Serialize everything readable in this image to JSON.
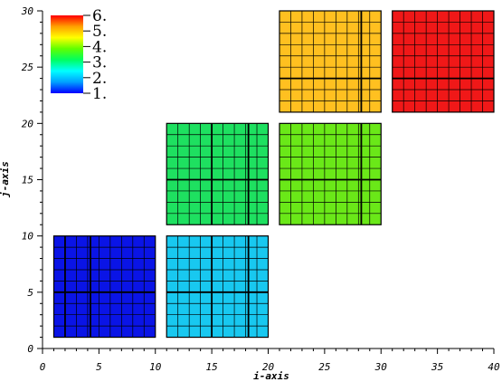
{
  "chart_data": {
    "type": "heatmap",
    "xlabel": "i-axis",
    "ylabel": "j-axis",
    "xlim": [
      0,
      40
    ],
    "ylim": [
      0,
      30
    ],
    "x_ticks": [
      "0",
      "5",
      "10",
      "15",
      "20",
      "25",
      "30",
      "35",
      "40"
    ],
    "y_ticks": [
      "0",
      "5",
      "10",
      "15",
      "20",
      "25",
      "30"
    ],
    "grid": false,
    "legend": {
      "placement": "top-left",
      "labels": [
        "1.",
        "2.",
        "3.",
        "4.",
        "5.",
        "6."
      ],
      "range": [
        1,
        6
      ],
      "colormap": [
        "#0000ff",
        "#00a0ff",
        "#00ffff",
        "#00ff60",
        "#60ff00",
        "#ffff00",
        "#ffa000",
        "#ff0000"
      ]
    },
    "blocks": [
      {
        "value": 1,
        "i": [
          1,
          10
        ],
        "j": [
          1,
          10
        ],
        "color": "#0a14e6",
        "cells": 9,
        "thick_lines_i": [
          2,
          4.25
        ],
        "thick_lines_j": [
          5
        ]
      },
      {
        "value": 2,
        "i": [
          11,
          20
        ],
        "j": [
          1,
          10
        ],
        "color": "#18c8f0",
        "cells": 9,
        "thick_lines_i": [
          15,
          18.25
        ],
        "thick_lines_j": [
          5
        ]
      },
      {
        "value": 3,
        "i": [
          11,
          20
        ],
        "j": [
          11,
          20
        ],
        "color": "#1ee060",
        "cells": 9,
        "thick_lines_i": [
          15,
          18.25
        ],
        "thick_lines_j": [
          15
        ]
      },
      {
        "value": 4,
        "i": [
          21,
          30
        ],
        "j": [
          11,
          20
        ],
        "color": "#6ae818",
        "cells": 9,
        "thick_lines_i": [
          28.25
        ],
        "thick_lines_j": [
          15
        ]
      },
      {
        "value": 5,
        "i": [
          21,
          30
        ],
        "j": [
          21,
          30
        ],
        "color": "#ffc020",
        "cells": 9,
        "thick_lines_i": [
          28.25
        ],
        "thick_lines_j": [
          24
        ]
      },
      {
        "value": 6,
        "i": [
          31,
          40
        ],
        "j": [
          21,
          30
        ],
        "color": "#f01818",
        "cells": 9,
        "thick_lines_i": [],
        "thick_lines_j": [
          24
        ]
      }
    ]
  }
}
